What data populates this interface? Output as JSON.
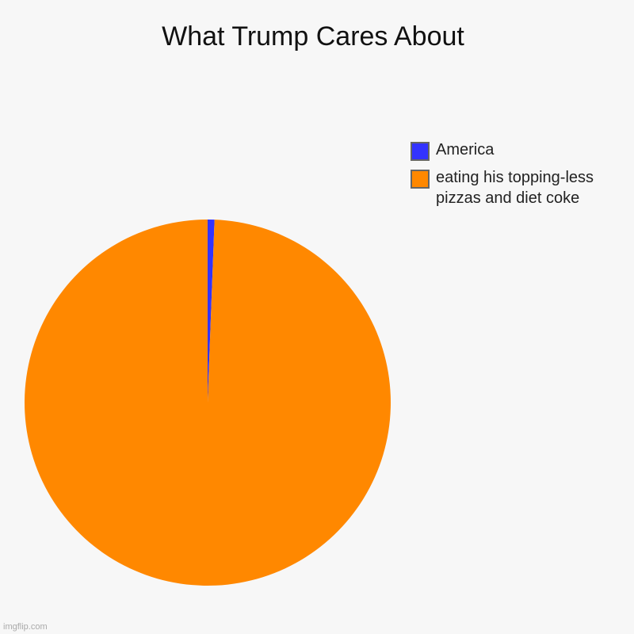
{
  "chart_data": {
    "type": "pie",
    "title": "What Trump Cares About",
    "categories": [
      "America",
      "eating his topping-less pizzas and diet coke"
    ],
    "values": [
      0.6,
      99.4
    ],
    "colors": [
      "#3333ff",
      "#ff8800"
    ]
  },
  "watermark": "imgflip.com"
}
